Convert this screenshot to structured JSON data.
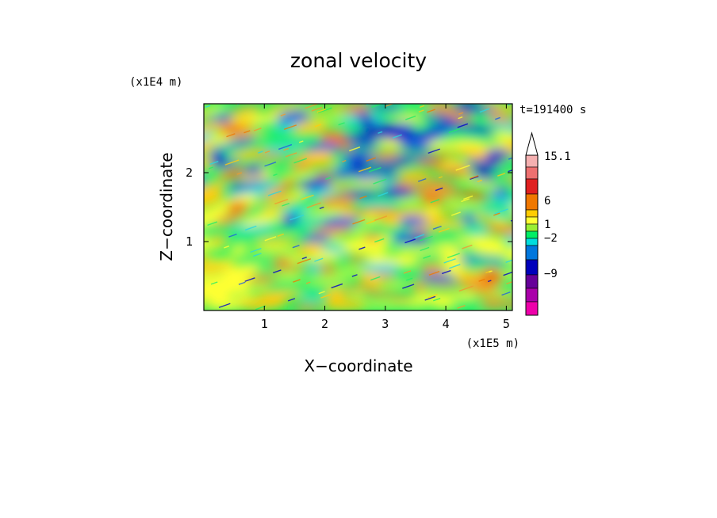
{
  "chart_data": {
    "type": "heatmap",
    "title": "zonal velocity",
    "xlabel": "X−coordinate",
    "ylabel": "Z−coordinate",
    "x_unit": "(x1E5 m)",
    "y_unit": "(x1E4 m)",
    "time_label": "t=191400 s",
    "xlim": [
      0.0,
      5.1
    ],
    "ylim": [
      0.0,
      3.0
    ],
    "x_ticks": [
      1,
      2,
      3,
      4,
      5
    ],
    "x_tick_labels": [
      "1",
      "2",
      "3",
      "4",
      "5"
    ],
    "y_ticks": [
      1,
      2
    ],
    "y_tick_labels": [
      "1",
      "2"
    ],
    "grid": false,
    "legend": "colorbar-right",
    "colorbar": {
      "extend_max": true,
      "tick_labels": [
        "15.1",
        "6",
        "1",
        "−2",
        "−9"
      ],
      "colors_top_to_bottom": [
        "#f5b0b0",
        "#ee7070",
        "#e02020",
        "#f07800",
        "#ffcc00",
        "#ffff33",
        "#99ee33",
        "#00ee66",
        "#00dddd",
        "#0077dd",
        "#0000bb",
        "#660099",
        "#aa00aa",
        "#ee00aa"
      ]
    },
    "field_colors": [
      "#0000cc",
      "#1f5fe0",
      "#2ad8e0",
      "#22ee66",
      "#ffff33",
      "#ffcc11",
      "#f09a30",
      "#f07a00"
    ]
  }
}
